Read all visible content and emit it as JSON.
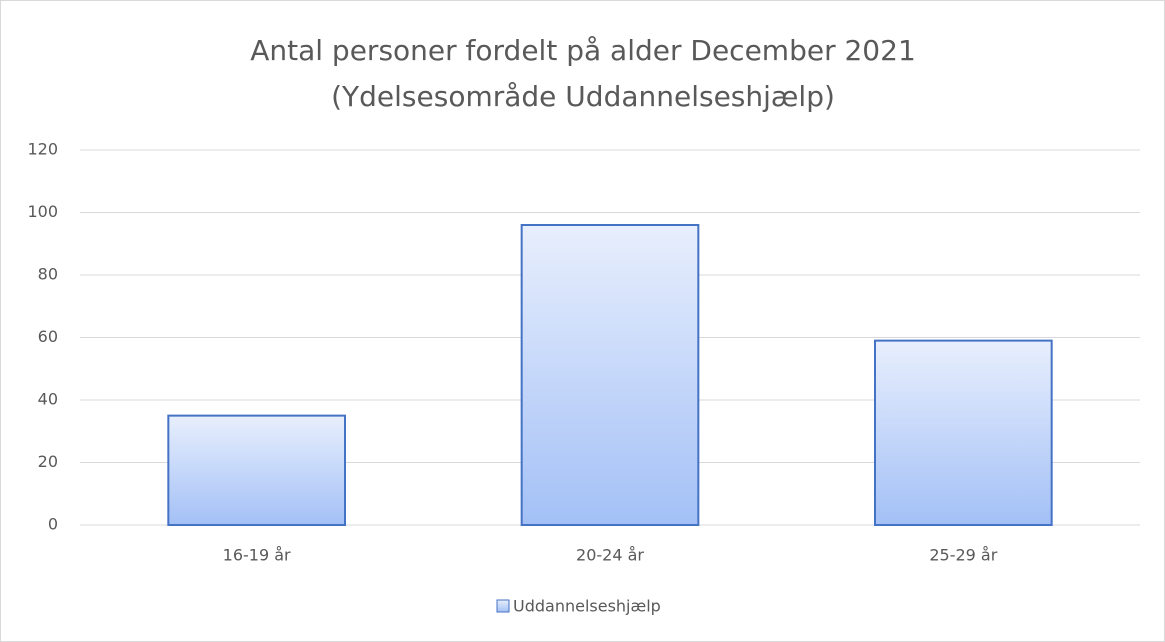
{
  "chart_data": {
    "type": "bar",
    "title": [
      "Antal personer fordelt på alder December 2021",
      "(Ydelsesområde Uddannelseshjælp)"
    ],
    "categories": [
      "16-19 år",
      "20-24 år",
      "25-29 år"
    ],
    "series": [
      {
        "name": "Uddannelseshjælp",
        "color": "#4472c4",
        "values": [
          35,
          96,
          59
        ]
      }
    ],
    "ylim": [
      0,
      120
    ],
    "yticks": [
      0,
      20,
      40,
      60,
      80,
      100,
      120
    ],
    "grid": true,
    "legend": "bottom"
  }
}
